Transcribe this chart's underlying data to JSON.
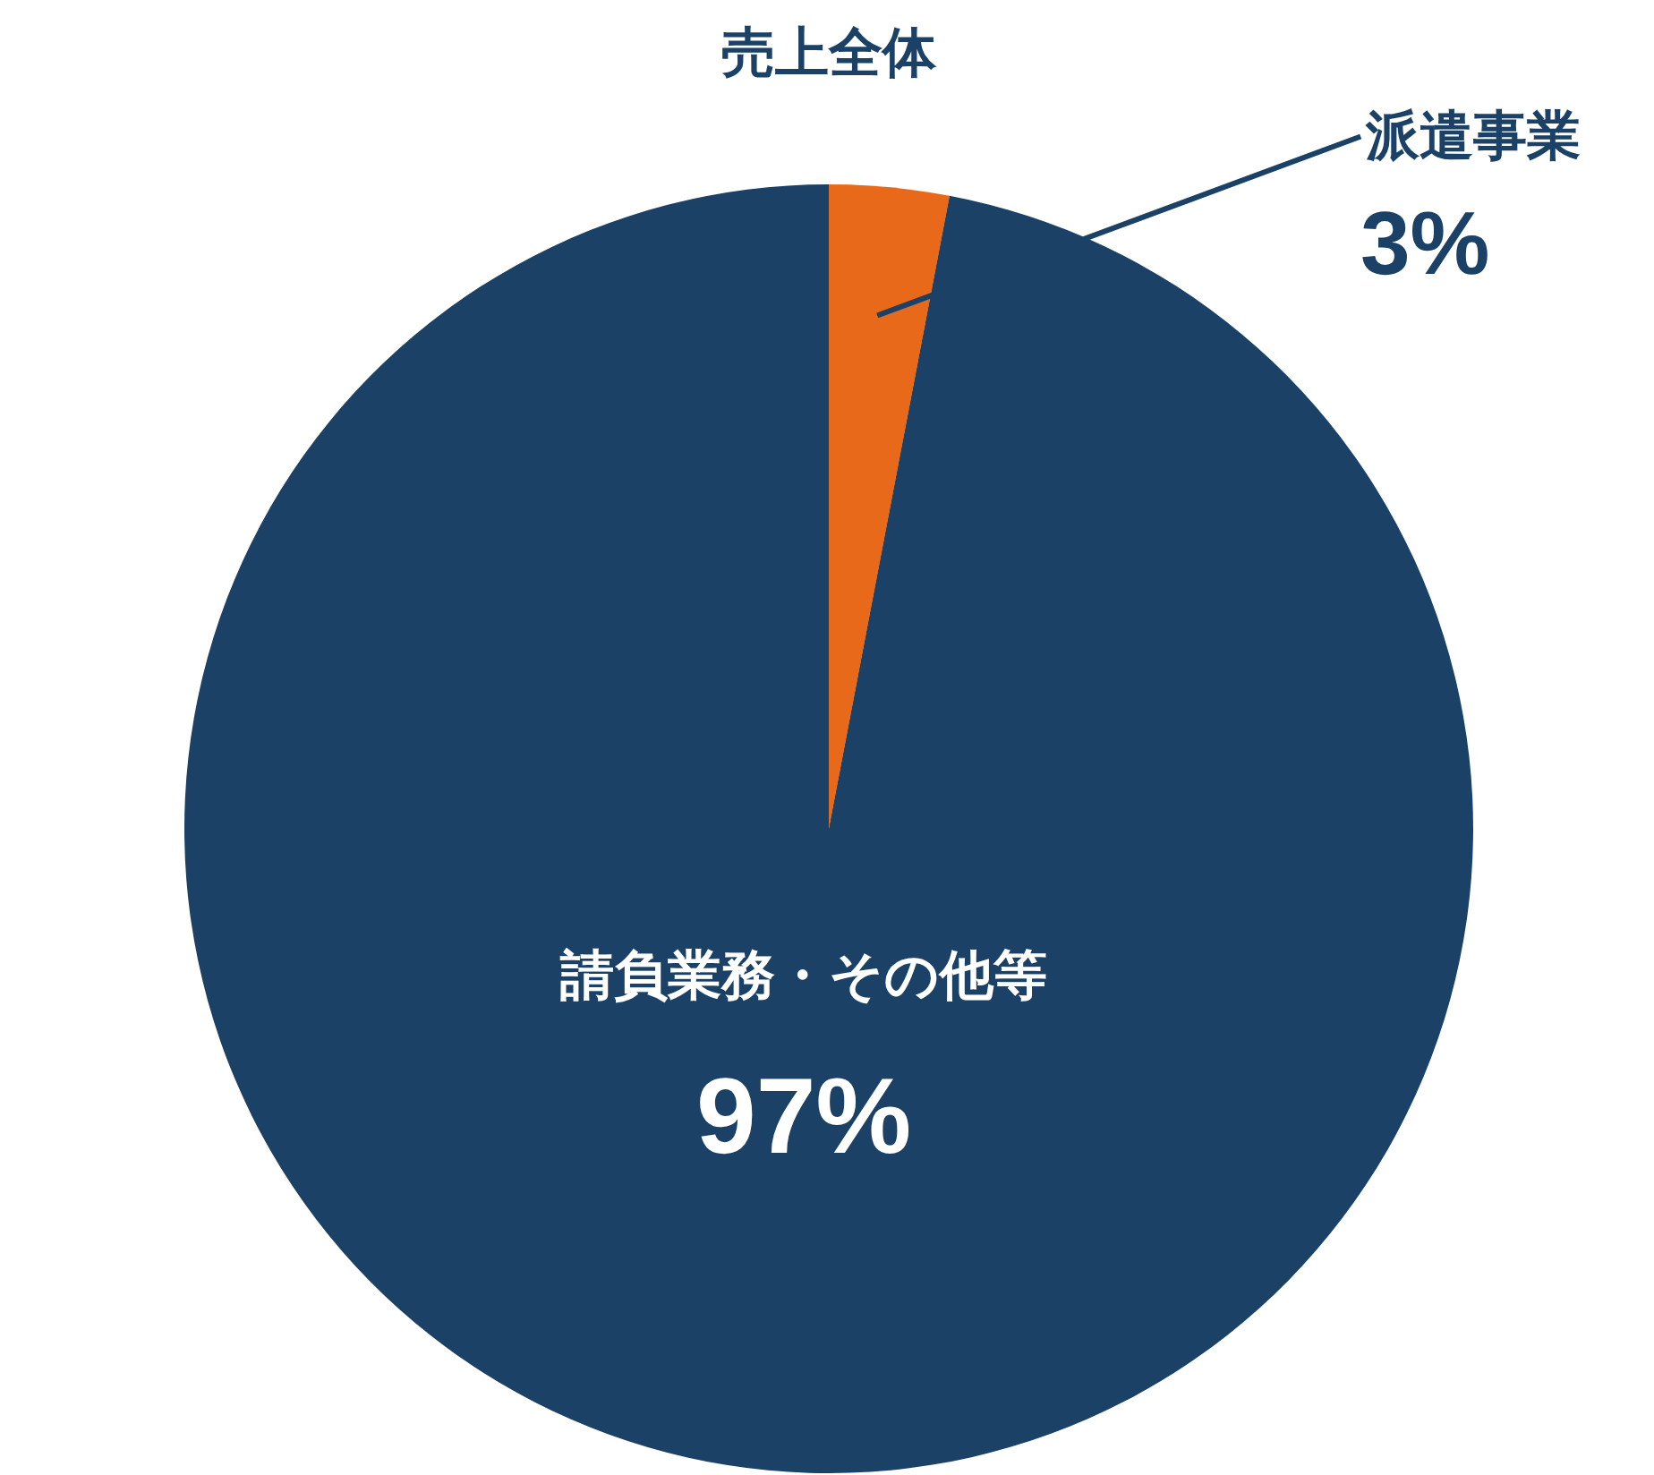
{
  "chart_data": {
    "type": "pie",
    "title": "売上全体",
    "categories": [
      "派遣事業",
      "請負業務・その他等"
    ],
    "values": [
      3,
      97
    ],
    "colors": [
      "#e8691a",
      "#1b4166"
    ],
    "value_labels": [
      "3%",
      "97%"
    ],
    "legend": false
  }
}
